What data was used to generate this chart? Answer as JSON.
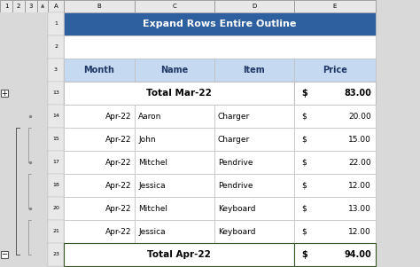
{
  "title": "Expand Rows Entire Outline",
  "title_bg": "#2E5F9E",
  "title_color": "#FFFFFF",
  "header_bg": "#C5D9F1",
  "header_color": "#1F3864",
  "header_labels": [
    "Month",
    "Name",
    "Item",
    "Price"
  ],
  "col_letters": [
    "B",
    "C",
    "D",
    "E"
  ],
  "row_numbers": [
    "1",
    "2",
    "3",
    "13",
    "14",
    "15",
    "17",
    "18",
    "20",
    "21",
    "23"
  ],
  "row_numbers_left": [
    "1",
    "2",
    "3",
    "13",
    "14",
    "15",
    "17",
    "18",
    "20",
    "21",
    "23"
  ],
  "data_rows": [
    {
      "type": "total",
      "label": "Total Mar-22",
      "price_sym": "$",
      "price_val": "83.00",
      "bold": true
    },
    {
      "type": "data",
      "month": "Apr-22",
      "name": "Aaron",
      "item": "Charger",
      "price_sym": "$",
      "price_val": "20.00"
    },
    {
      "type": "data",
      "month": "Apr-22",
      "name": "John",
      "item": "Charger",
      "price_sym": "$",
      "price_val": "15.00"
    },
    {
      "type": "data",
      "month": "Apr-22",
      "name": "Mitchel",
      "item": "Pendrive",
      "price_sym": "$",
      "price_val": "22.00"
    },
    {
      "type": "data",
      "month": "Apr-22",
      "name": "Jessica",
      "item": "Pendrive",
      "price_sym": "$",
      "price_val": "12.00"
    },
    {
      "type": "data",
      "month": "Apr-22",
      "name": "Mitchel",
      "item": "Keyboard",
      "price_sym": "$",
      "price_val": "13.00"
    },
    {
      "type": "data",
      "month": "Apr-22",
      "name": "Jessica",
      "item": "Keyboard",
      "price_sym": "$",
      "price_val": "12.00"
    },
    {
      "type": "total",
      "label": "Total Apr-22",
      "price_sym": "$",
      "price_val": "94.00",
      "bold": true,
      "border_color": "#375623"
    }
  ],
  "excel_bg": "#D9D9D9",
  "cell_bg": "#FFFFFF",
  "grid_color": "#BFBFBF",
  "outline_number_bg": "#D9D9D9",
  "level_numbers": [
    "1",
    "2",
    "3"
  ],
  "figsize": [
    4.74,
    3.01
  ],
  "dpi": 100
}
